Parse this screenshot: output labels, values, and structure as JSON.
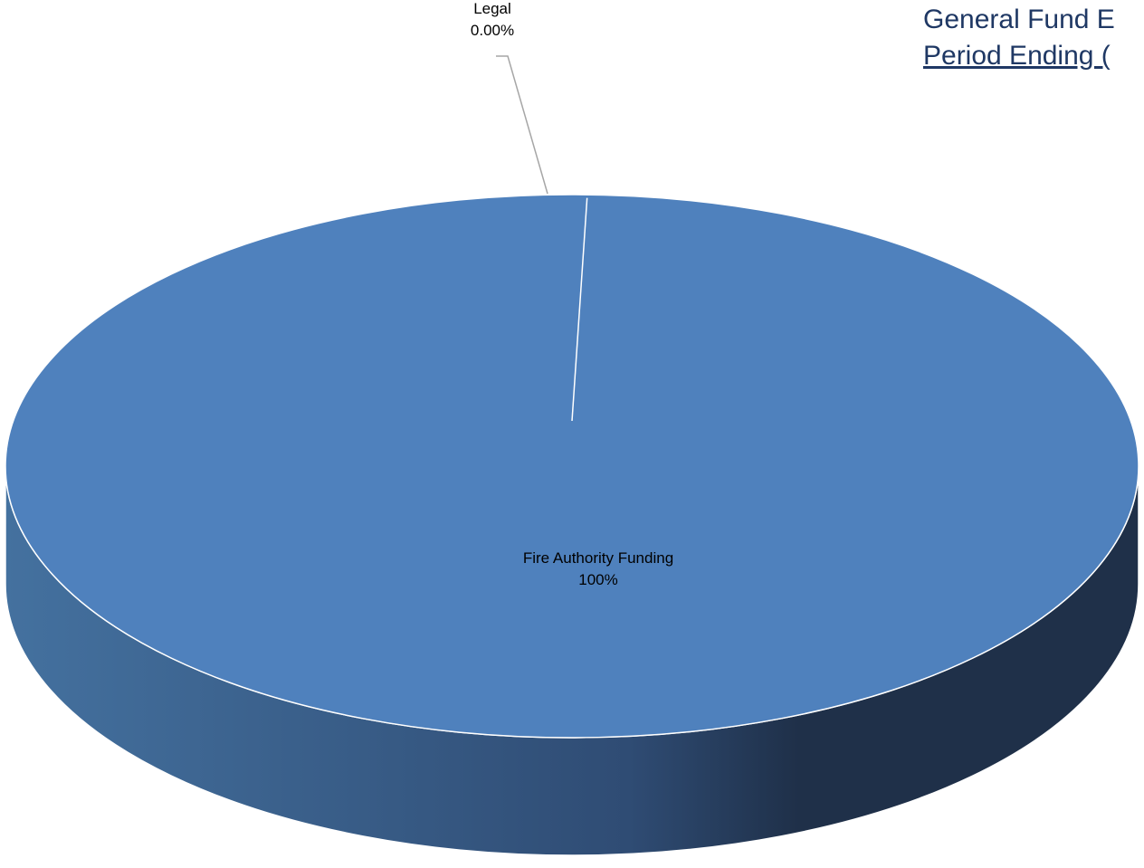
{
  "chart_data": {
    "type": "pie",
    "style": "3d",
    "title": "General Fund E",
    "subtitle": "Period Ending (",
    "categories": [
      "Fire Authority Funding",
      "Legal"
    ],
    "values": [
      100,
      0
    ],
    "data_labels": [
      {
        "category": "Fire Authority Funding",
        "percent": "100%"
      },
      {
        "category": "Legal",
        "percent": "0.00%"
      }
    ],
    "colors": {
      "slice_top": "#4f81bd",
      "slice_side_light": "#44719f",
      "slice_side_dark": "#1f3049",
      "slice_border": "#ffffff",
      "leader_line": "#a6a6a6"
    },
    "legend": "none"
  }
}
